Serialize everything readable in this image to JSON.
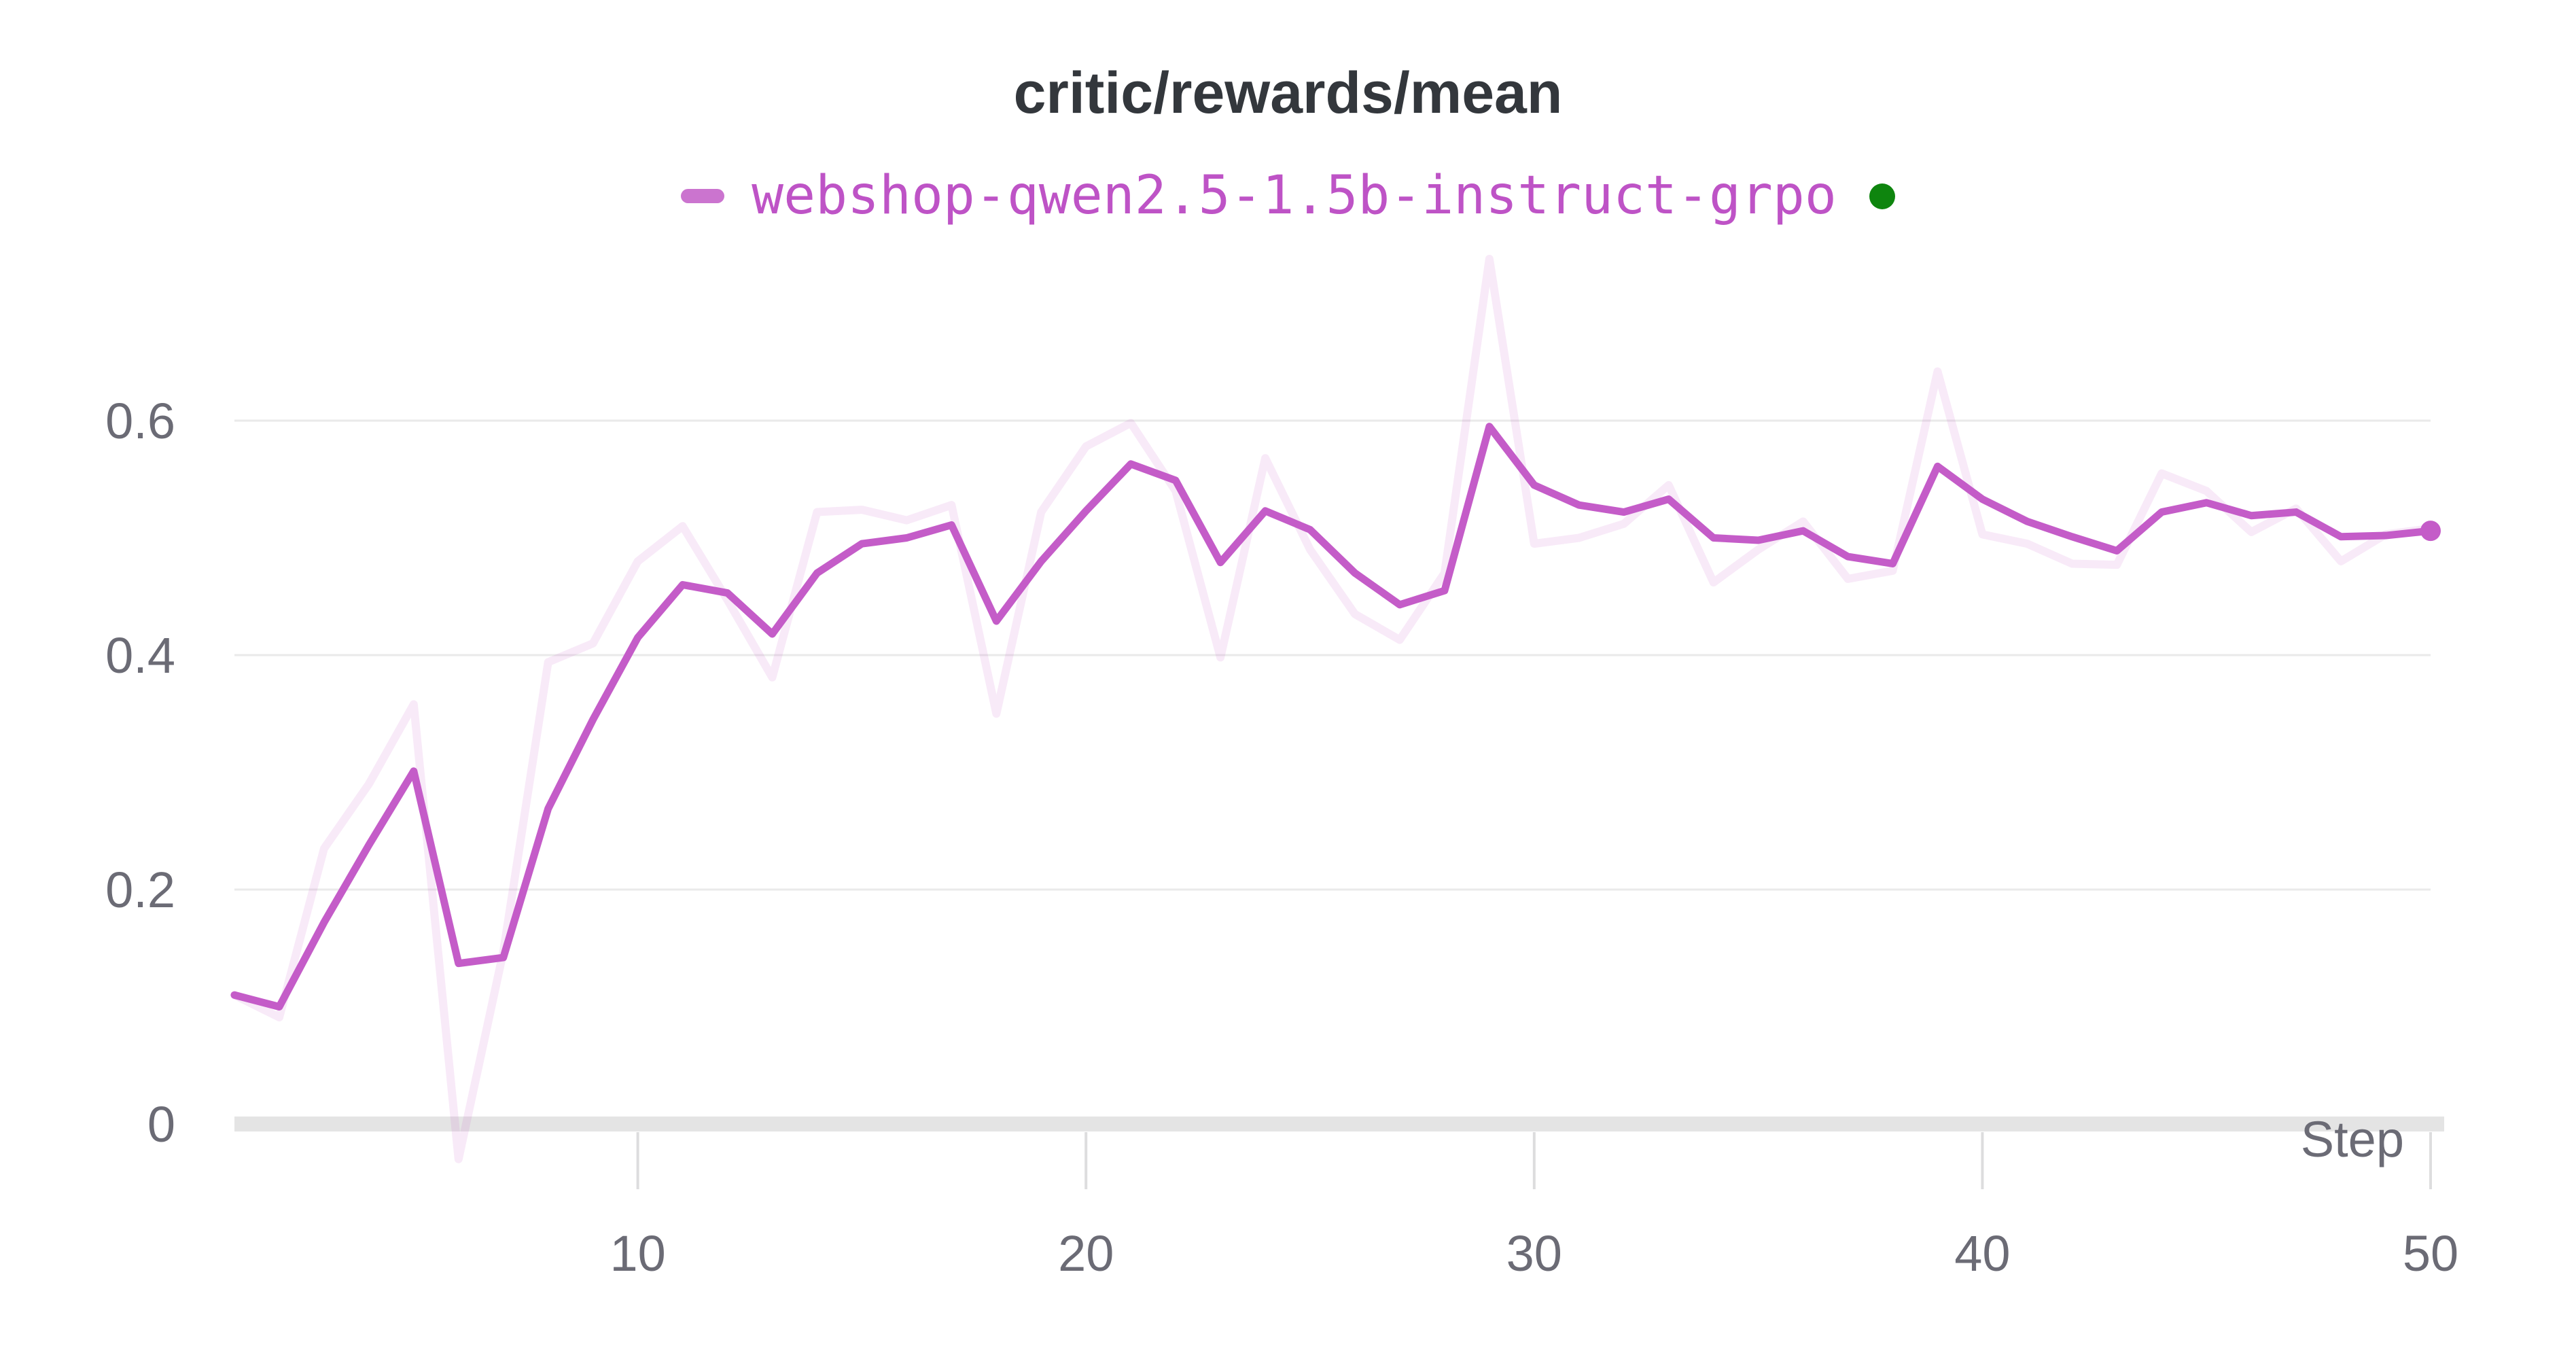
{
  "title": "critic/rewards/mean",
  "legend": {
    "series_label": "webshop-qwen2.5-1.5b-instruct-grpo",
    "swatch_color": "#CB74CF",
    "label_color": "#BE53C6",
    "status_dot_color": "#0E850E"
  },
  "colors": {
    "smoothed_line": "#C45CC8",
    "raw_line": "rgba(198,95,202,0.13)",
    "end_marker": "#C45CC8",
    "gridline": "#EAEAEA",
    "baseline_band": "#E4E4E4",
    "tick_mark": "#DDDDDE",
    "axis_label": "#6B6B75",
    "title_text": "#33373C",
    "background": "#FFFFFF"
  },
  "chart_data": {
    "type": "line",
    "title": "critic/rewards/mean",
    "xlabel": "Step",
    "ylabel": "",
    "x_tick_labels": [
      "10",
      "20",
      "30",
      "40",
      "50"
    ],
    "x_tick_values": [
      10,
      20,
      30,
      40,
      50
    ],
    "y_tick_labels": [
      "0",
      "0.2",
      "0.4",
      "0.6"
    ],
    "y_tick_values": [
      0,
      0.2,
      0.4,
      0.6
    ],
    "xlim": [
      1,
      50
    ],
    "ylim": [
      -0.07,
      0.76
    ],
    "grid": "horizontal",
    "legend_position": "top-center",
    "x": [
      1,
      2,
      3,
      4,
      5,
      6,
      7,
      8,
      9,
      10,
      11,
      12,
      13,
      14,
      15,
      16,
      17,
      18,
      19,
      20,
      21,
      22,
      23,
      24,
      25,
      26,
      27,
      28,
      29,
      30,
      31,
      32,
      33,
      34,
      35,
      36,
      37,
      38,
      39,
      40,
      41,
      42,
      43,
      44,
      45,
      46,
      47,
      48,
      49,
      50
    ],
    "series": [
      {
        "name": "webshop-qwen2.5-1.5b-instruct-grpo (raw)",
        "role": "raw",
        "values": [
          0.11,
          0.091,
          0.235,
          0.29,
          0.358,
          -0.03,
          0.147,
          0.394,
          0.41,
          0.48,
          0.51,
          0.447,
          0.381,
          0.522,
          0.524,
          0.515,
          0.528,
          0.35,
          0.522,
          0.578,
          0.598,
          0.54,
          0.398,
          0.568,
          0.49,
          0.435,
          0.413,
          0.47,
          0.738,
          0.495,
          0.5,
          0.512,
          0.545,
          0.462,
          0.49,
          0.514,
          0.465,
          0.472,
          0.642,
          0.503,
          0.495,
          0.478,
          0.477,
          0.555,
          0.54,
          0.505,
          0.525,
          0.48,
          0.503,
          0.508
        ]
      },
      {
        "name": "webshop-qwen2.5-1.5b-instruct-grpo (smoothed)",
        "role": "smoothed",
        "end_marker": true,
        "final_value": 0.506,
        "values": [
          0.11,
          0.1,
          0.172,
          0.238,
          0.301,
          0.137,
          0.142,
          0.269,
          0.345,
          0.415,
          0.46,
          0.453,
          0.418,
          0.47,
          0.495,
          0.5,
          0.511,
          0.429,
          0.48,
          0.523,
          0.563,
          0.549,
          0.479,
          0.523,
          0.507,
          0.47,
          0.443,
          0.455,
          0.595,
          0.545,
          0.528,
          0.522,
          0.533,
          0.5,
          0.498,
          0.506,
          0.484,
          0.478,
          0.561,
          0.533,
          0.514,
          0.501,
          0.489,
          0.522,
          0.53,
          0.519,
          0.522,
          0.501,
          0.502,
          0.506
        ]
      }
    ]
  }
}
